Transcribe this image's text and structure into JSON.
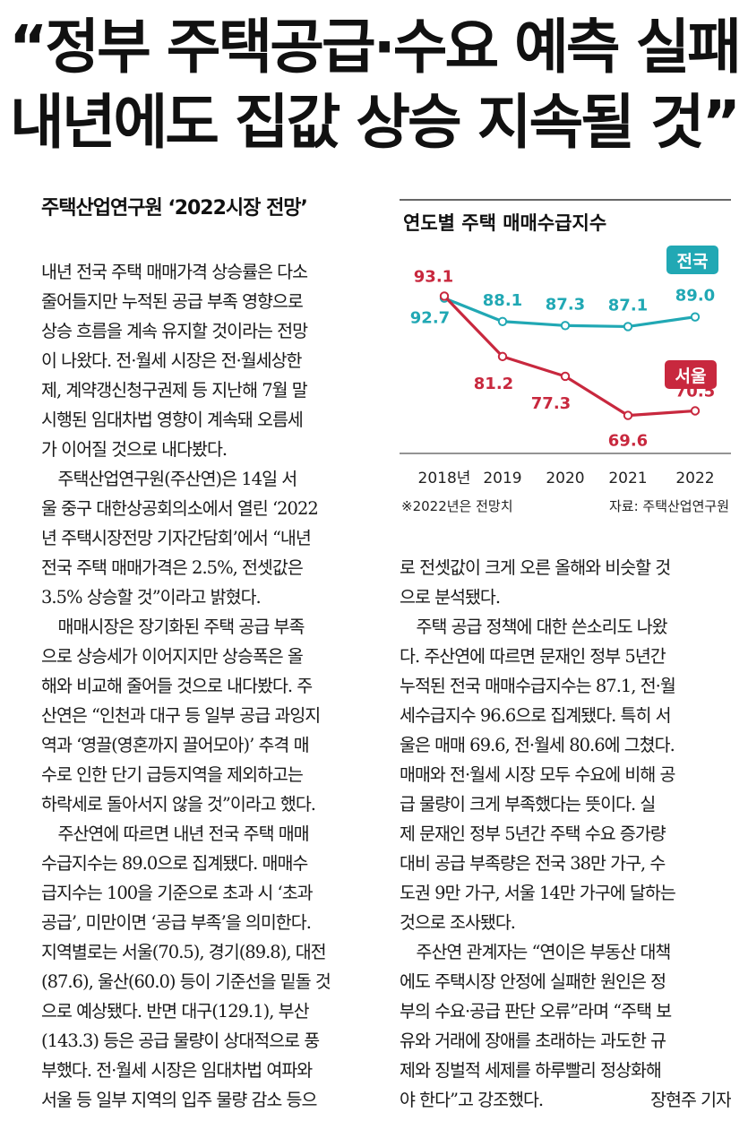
{
  "headline": {
    "line1": "“정부 주택공급·수요 예측 실패",
    "line2": "내년에도 집값 상승 지속될 것”"
  },
  "subhead": "주택산업연구원 ‘2022시장 전망’",
  "left_lines": [
    "내년 전국 주택 매매가격 상승률은 다소",
    "줄어들지만 누적된 공급 부족 영향으로",
    "상승 흐름을 계속 유지할 것이라는 전망",
    "이 나왔다. 전·월세 시장은 전·월세상한",
    "제, 계약갱신청구권제 등 지난해 7월 말",
    "시행된 임대차법 영향이 계속돼 오름세",
    "가 이어질 것으로 내다봤다.",
    "  주택산업연구원(주산연)은 14일 서",
    "울 중구 대한상공회의소에서 열린 ‘2022",
    "년 주택시장전망 기자간담회’에서 “내년",
    "전국 주택 매매가격은 2.5%, 전셋값은",
    "3.5% 상승할 것”이라고 밝혔다.",
    "  매매시장은 장기화된 주택 공급 부족",
    "으로 상승세가 이어지지만 상승폭은 올",
    "해와 비교해 줄어들 것으로 내다봤다. 주",
    "산연은 “인천과 대구 등 일부 공급 과잉지",
    "역과 ‘영끌(영혼까지 끌어모아)’ 추격 매",
    "수로 인한 단기 급등지역을 제외하고는",
    "하락세로 돌아서지 않을 것”이라고 했다.",
    "  주산연에 따르면 내년 전국 주택 매매",
    "수급지수는 89.0으로 집계됐다. 매매수",
    "급지수는 100을 기준으로 초과 시 ‘초과",
    "공급’, 미만이면 ‘공급 부족’을 의미한다.",
    "지역별로는 서울(70.5), 경기(89.8), 대전",
    "(87.6), 울산(60.0) 등이 기준선을 밑돌 것",
    "으로 예상됐다. 반면 대구(129.1), 부산",
    "(143.3) 등은 공급 물량이 상대적으로 풍",
    "부했다. 전·월세 시장은 임대차법 여파와",
    "서울 등 일부 지역의 입주 물량 감소 등으"
  ],
  "right_lines": [
    "로 전셋값이 크게 오른 올해와 비슷할 것",
    "으로 분석됐다.",
    "  주택 공급 정책에 대한 쓴소리도 나왔",
    "다. 주산연에 따르면 문재인 정부 5년간",
    "누적된 전국 매매수급지수는 87.1, 전·월",
    "세수급지수 96.6으로 집계됐다. 특히 서",
    "울은 매매 69.6, 전·월세 80.6에 그쳤다.",
    "매매와 전·월세 시장 모두 수요에 비해 공",
    "급 물량이 크게 부족했다는 뜻이다. 실",
    "제 문재인 정부 5년간 주택 수요 증가량",
    "대비 공급 부족량은 전국 38만 가구, 수",
    "도권 9만 가구, 서울 14만 가구에 달하는",
    "것으로 조사됐다.",
    "  주산연 관계자는 “연이은 부동산 대책",
    "에도 주택시장 안정에 실패한 원인은 정",
    "부의 수요·공급 판단 오류”라며 “주택 보",
    "유와 거래에 장애를 초래하는 과도한 규",
    "제와 징벌적 세제를 하루빨리 정상화해",
    "야 한다”고 강조했다."
  ],
  "byline": "장현주 기자",
  "chart_data": {
    "type": "line",
    "title": "연도별 주택 매매수급지수",
    "x": [
      "2018년",
      "2019",
      "2020",
      "2021",
      "2022"
    ],
    "series": [
      {
        "name": "전국",
        "color": "#21a8b4",
        "values": [
          92.7,
          88.1,
          87.3,
          87.1,
          89.0
        ],
        "labels": [
          "92.7",
          "88.1",
          "87.3",
          "87.1",
          "89.0"
        ]
      },
      {
        "name": "서울",
        "color": "#c8283e",
        "values": [
          93.1,
          81.2,
          77.3,
          69.6,
          70.5
        ],
        "labels": [
          "93.1",
          "81.2",
          "77.3",
          "69.6",
          "70.5"
        ]
      }
    ],
    "footnote": "※2022년은 전망치",
    "source": "자료: 주택산업연구원",
    "ylim": [
      66,
      96
    ],
    "grid": false
  }
}
